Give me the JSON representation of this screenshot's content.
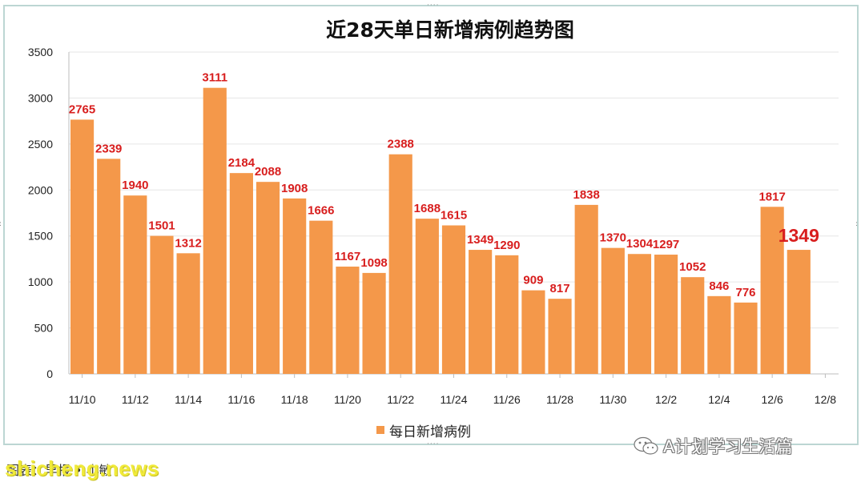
{
  "chart_data": {
    "type": "bar",
    "title": "近28天单日新增病例趋势图",
    "series": [
      {
        "name": "每日新增病例",
        "color": "#f4984a",
        "values": [
          2765,
          2339,
          1940,
          1501,
          1312,
          3111,
          2184,
          2088,
          1908,
          1666,
          1167,
          1098,
          2388,
          1688,
          1615,
          1349,
          1290,
          909,
          817,
          1838,
          1370,
          1304,
          1297,
          1052,
          846,
          776,
          1817,
          1349
        ]
      }
    ],
    "data_labels": [
      "2765",
      "2339",
      "1940",
      "1501",
      "1312",
      "3111",
      "2184",
      "2088",
      "1908",
      "1666",
      "1167",
      "1098",
      "2388",
      "1688",
      "1615",
      "1349",
      "1290",
      "909",
      "817",
      "1838",
      "1370",
      "1304",
      "1297",
      "1052",
      "846",
      "776",
      "1817",
      "1349"
    ],
    "highlight_index": 27,
    "x_tick_labels": [
      "11/10",
      "11/12",
      "11/14",
      "11/16",
      "11/18",
      "11/20",
      "11/22",
      "11/24",
      "11/26",
      "11/28",
      "11/30",
      "12/2",
      "12/4",
      "12/6",
      "12/8"
    ],
    "y_ticks": [
      0,
      500,
      1000,
      1500,
      2000,
      2500,
      3000,
      3500
    ],
    "ylim": [
      0,
      3500
    ],
    "xlabel": "",
    "ylabel": "",
    "grid": true,
    "legend_position": "bottom",
    "label_color": "#d81e1e"
  },
  "caption": "图表：早报 • 小敏",
  "watermark_site": "shicheng.news",
  "watermark_wechat": "A计划学习生活篇"
}
